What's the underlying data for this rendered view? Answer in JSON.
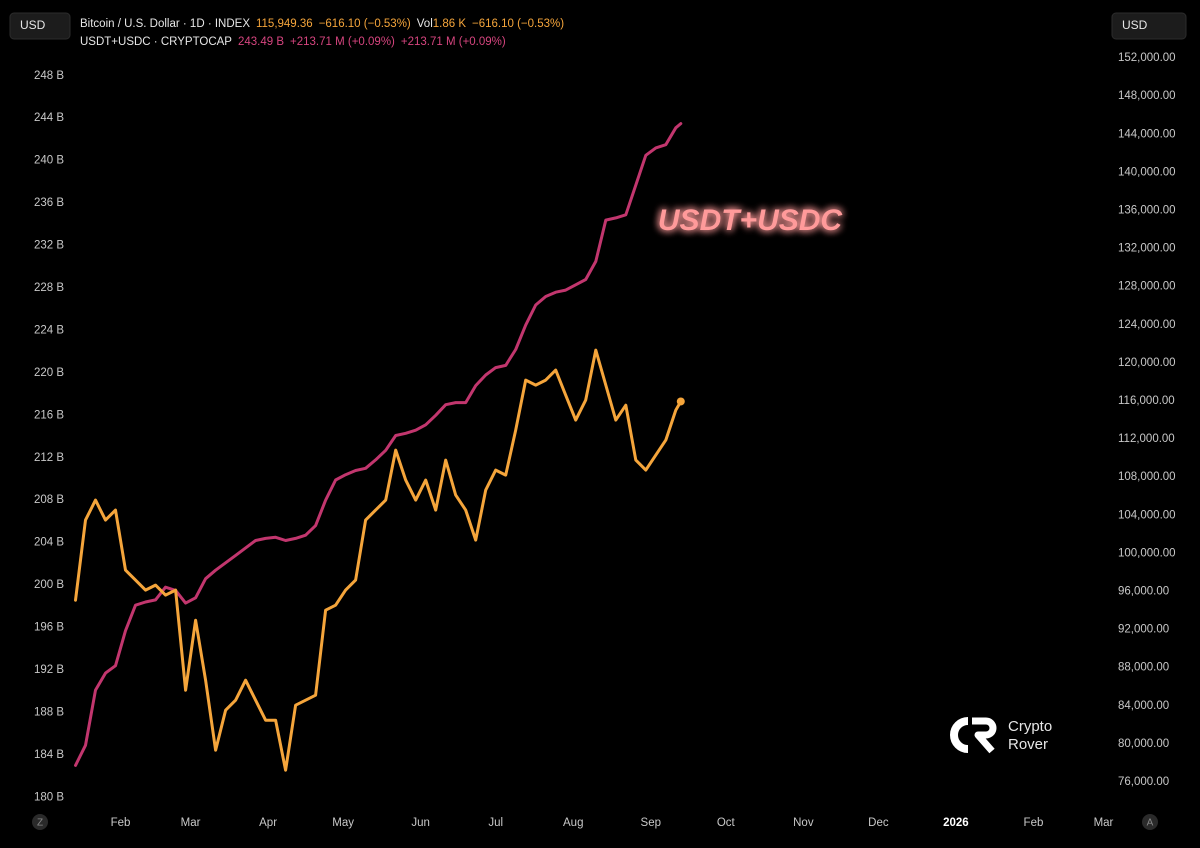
{
  "header": {
    "line1": {
      "price": "115,949.36",
      "change": "−616.10 (−0.53%)",
      "vol_label": "Vol",
      "volume": "1.86 K",
      "vol_change": "−616.10 (−0.53%)"
    },
    "line2": {
      "value": "243.49 B",
      "change": "+213.71 M (+0.09%)",
      "change2": "+213.71 M (+0.09%)"
    }
  },
  "watermark": {
    "line1": "Crypto",
    "line2": "Rover"
  },
  "controls": {
    "left": "Z",
    "right": "A"
  },
  "chart_data": {
    "type": "line",
    "annotation": "USDT+USDC",
    "ylabel": "USD",
    "y2label": "USD",
    "x": [
      13,
      17,
      21,
      25,
      29,
      33,
      37,
      41,
      45,
      49,
      53,
      57,
      61,
      65,
      69,
      73,
      77,
      81,
      85,
      89,
      93,
      97,
      101,
      105,
      109,
      113,
      117,
      121,
      125,
      129,
      133,
      137,
      141,
      145,
      149,
      153,
      157,
      161,
      165,
      169,
      173,
      177,
      181,
      185,
      189,
      193,
      197,
      201,
      205,
      209,
      213,
      217,
      221,
      225,
      229,
      233,
      237,
      241,
      245,
      249,
      253,
      255
    ],
    "xlim": [
      10,
      425
    ],
    "xticks": [
      {
        "value": 31,
        "label": "Feb"
      },
      {
        "value": 59,
        "label": "Mar"
      },
      {
        "value": 90,
        "label": "Apr"
      },
      {
        "value": 120,
        "label": "May"
      },
      {
        "value": 151,
        "label": "Jun"
      },
      {
        "value": 181,
        "label": "Jul"
      },
      {
        "value": 212,
        "label": "Aug"
      },
      {
        "value": 243,
        "label": "Sep"
      },
      {
        "value": 273,
        "label": "Oct"
      },
      {
        "value": 304,
        "label": "Nov"
      },
      {
        "value": 334,
        "label": "Dec"
      },
      {
        "value": 365,
        "label": "2026"
      },
      {
        "value": 396,
        "label": "Feb"
      },
      {
        "value": 424,
        "label": "Mar"
      }
    ],
    "ylim": [
      178.8,
      250.9
    ],
    "yticks": [
      {
        "value": 180,
        "label": "180 B"
      },
      {
        "value": 184,
        "label": "184 B"
      },
      {
        "value": 188,
        "label": "188 B"
      },
      {
        "value": 192,
        "label": "192 B"
      },
      {
        "value": 196,
        "label": "196 B"
      },
      {
        "value": 200,
        "label": "200 B"
      },
      {
        "value": 204,
        "label": "204 B"
      },
      {
        "value": 208,
        "label": "208 B"
      },
      {
        "value": 212,
        "label": "212 B"
      },
      {
        "value": 216,
        "label": "216 B"
      },
      {
        "value": 220,
        "label": "220 B"
      },
      {
        "value": 224,
        "label": "224 B"
      },
      {
        "value": 228,
        "label": "228 B"
      },
      {
        "value": 232,
        "label": "232 B"
      },
      {
        "value": 236,
        "label": "236 B"
      },
      {
        "value": 240,
        "label": "240 B"
      },
      {
        "value": 244,
        "label": "244 B"
      },
      {
        "value": 248,
        "label": "248 B"
      }
    ],
    "y2lim": [
      73060,
      153370
    ],
    "y2ticks": [
      {
        "value": 76000,
        "label": "76,000.00"
      },
      {
        "value": 80000,
        "label": "80,000.00"
      },
      {
        "value": 84000,
        "label": "84,000.00"
      },
      {
        "value": 88000,
        "label": "88,000.00"
      },
      {
        "value": 92000,
        "label": "92,000.00"
      },
      {
        "value": 96000,
        "label": "96,000.00"
      },
      {
        "value": 100000,
        "label": "100,000.00"
      },
      {
        "value": 104000,
        "label": "104,000.00"
      },
      {
        "value": 108000,
        "label": "108,000.00"
      },
      {
        "value": 112000,
        "label": "112,000.00"
      },
      {
        "value": 116000,
        "label": "116,000.00"
      },
      {
        "value": 120000,
        "label": "120,000.00"
      },
      {
        "value": 124000,
        "label": "124,000.00"
      },
      {
        "value": 128000,
        "label": "128,000.00"
      },
      {
        "value": 132000,
        "label": "132,000.00"
      },
      {
        "value": 136000,
        "label": "136,000.00"
      },
      {
        "value": 140000,
        "label": "140,000.00"
      },
      {
        "value": 144000,
        "label": "144,000.00"
      },
      {
        "value": 148000,
        "label": "148,000.00"
      },
      {
        "value": 152000,
        "label": "152,000.00"
      }
    ],
    "grid": false,
    "series": [
      {
        "name": "Bitcoin / U.S. Dollar · 1D · INDEX",
        "color": "#f5a53b",
        "axis": "y2",
        "values": [
          95090,
          103490,
          105590,
          103490,
          104540,
          98240,
          97190,
          96140,
          96670,
          95620,
          96140,
          85640,
          92990,
          86690,
          79340,
          83540,
          84590,
          86690,
          84590,
          82490,
          82490,
          77240,
          84060,
          84590,
          85110,
          94040,
          94560,
          96140,
          97190,
          103490,
          104540,
          105590,
          110840,
          107690,
          105590,
          107690,
          104540,
          109790,
          106120,
          104540,
          101390,
          106640,
          108740,
          108220,
          112940,
          118190,
          117670,
          118190,
          119240,
          116610,
          113990,
          116090,
          121340,
          117670,
          113990,
          115560,
          109790,
          108740,
          110320,
          111890,
          115040,
          115949.36
        ]
      },
      {
        "name": "USDT+USDC · CRYPTOCAP",
        "color": "#c2366e",
        "values": [
          183.0,
          184.9,
          190.1,
          191.7,
          192.4,
          195.7,
          198.1,
          198.4,
          198.6,
          199.8,
          199.5,
          198.3,
          198.8,
          200.6,
          201.4,
          202.1,
          202.8,
          203.5,
          204.2,
          204.4,
          204.5,
          204.2,
          204.4,
          204.7,
          205.6,
          208.0,
          209.9,
          210.4,
          210.8,
          211.0,
          211.8,
          212.7,
          214.1,
          214.3,
          214.6,
          215.1,
          216.0,
          217.0,
          217.2,
          217.2,
          218.8,
          219.8,
          220.5,
          220.7,
          222.2,
          224.5,
          226.4,
          227.2,
          227.6,
          227.8,
          228.3,
          228.8,
          230.5,
          234.4,
          234.6,
          234.9,
          237.7,
          240.5,
          241.2,
          241.5,
          243.1,
          243.49
        ]
      }
    ]
  }
}
